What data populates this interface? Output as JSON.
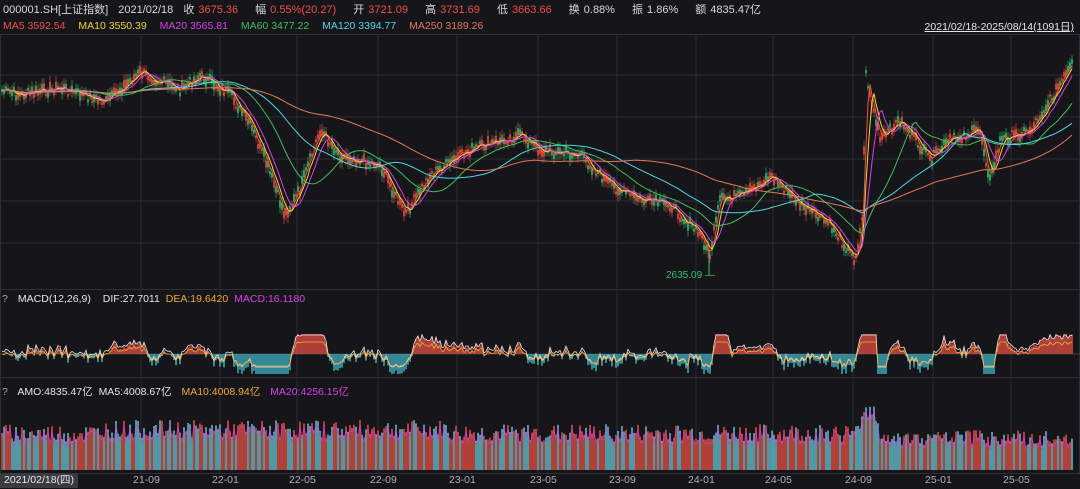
{
  "header": {
    "symbol": "000001.SH[上证指数]",
    "date": "2021/02/18",
    "close_label": "收",
    "close_value": "3675.36",
    "change_label": "幅",
    "change_value": "0.55%(20.27)",
    "open_label": "开",
    "open_value": "3721.09",
    "high_label": "高",
    "high_value": "3731.69",
    "low_label": "低",
    "low_value": "3663.66",
    "turnover_label": "换",
    "turnover_value": "0.88%",
    "amplitude_label": "振",
    "amplitude_value": "1.86%",
    "amount_label": "额",
    "amount_value": "4835.47亿"
  },
  "ma_legend": [
    {
      "text": "MA5 3592.54",
      "color": "#ef4f46"
    },
    {
      "text": "MA10 3550.39",
      "color": "#f2d43b"
    },
    {
      "text": "MA20 3565.81",
      "color": "#d640e8"
    },
    {
      "text": "MA60 3477.22",
      "color": "#3fbf5a"
    },
    {
      "text": "MA120 3394.77",
      "color": "#4fd6e0"
    },
    {
      "text": "MA250 3189.26",
      "color": "#e0785a"
    }
  ],
  "date_range": "2021/02/18-2025/08/14(1091日)",
  "low_marker": "2635.09",
  "macd": {
    "question": "?",
    "title": "MACD(12,26,9)",
    "dif": "DIF:27.7011",
    "dea": "DEA:19.6420",
    "macd": "MACD:16.1180"
  },
  "amo": {
    "question": "?",
    "amo": "AMO:4835.47亿",
    "ma5": "MA5:4008.67亿",
    "ma10": "MA10:4008.94亿",
    "ma20": "MA20:4256.15亿"
  },
  "cursor_date": "2021/02/18(四)",
  "x_axis": [
    "21-09",
    "22-01",
    "22-05",
    "22-09",
    "23-01",
    "23-05",
    "23-09",
    "24-01",
    "24-05",
    "24-09",
    "25-01",
    "25-05"
  ],
  "colors": {
    "up": "#ef4f46",
    "down": "#35c06b",
    "bg": "#16161a",
    "grid": "#2b2c31"
  }
}
